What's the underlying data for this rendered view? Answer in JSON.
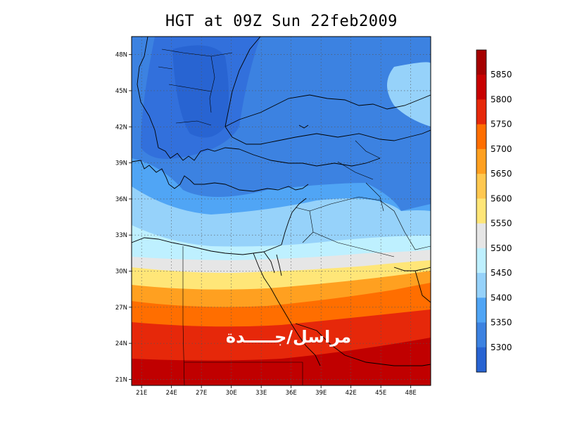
{
  "title": "HGT at 09Z Sun 22feb2009",
  "watermark_text": "مراسل/جـــــدة",
  "lon_labels": [
    "21E",
    "24E",
    "27E",
    "30E",
    "33E",
    "36E",
    "39E",
    "42E",
    "45E",
    "48E"
  ],
  "lat_labels": [
    "48N",
    "45N",
    "42N",
    "39N",
    "36N",
    "33N",
    "30N",
    "27N",
    "24N",
    "21N"
  ],
  "colorbar": {
    "levels": [
      "5850",
      "5800",
      "5750",
      "5700",
      "5650",
      "5600",
      "5550",
      "5500",
      "5450",
      "5400",
      "5350",
      "5300"
    ],
    "colors": [
      "#a50000",
      "#c80000",
      "#e6280a",
      "#ff6e00",
      "#ffa020",
      "#ffc850",
      "#ffe678",
      "#e6e6e6",
      "#bef0ff",
      "#96d2fa",
      "#50a5f5",
      "#3c82e1",
      "#2864d2"
    ]
  },
  "chart_data": {
    "type": "heatmap",
    "title": "HGT at 09Z Sun 22feb2009",
    "variable": "HGT",
    "x_ticks": [
      "21E",
      "24E",
      "27E",
      "30E",
      "33E",
      "36E",
      "39E",
      "42E",
      "45E",
      "48E"
    ],
    "y_ticks": [
      "48N",
      "45N",
      "42N",
      "39N",
      "36N",
      "33N",
      "30N",
      "27N",
      "24N",
      "21N"
    ],
    "lon_range": [
      20,
      50
    ],
    "lat_range": [
      20.5,
      49.5
    ],
    "contour_levels": [
      5300,
      5350,
      5400,
      5450,
      5500,
      5550,
      5600,
      5650,
      5700,
      5750,
      5800,
      5850
    ],
    "grid": true
  }
}
